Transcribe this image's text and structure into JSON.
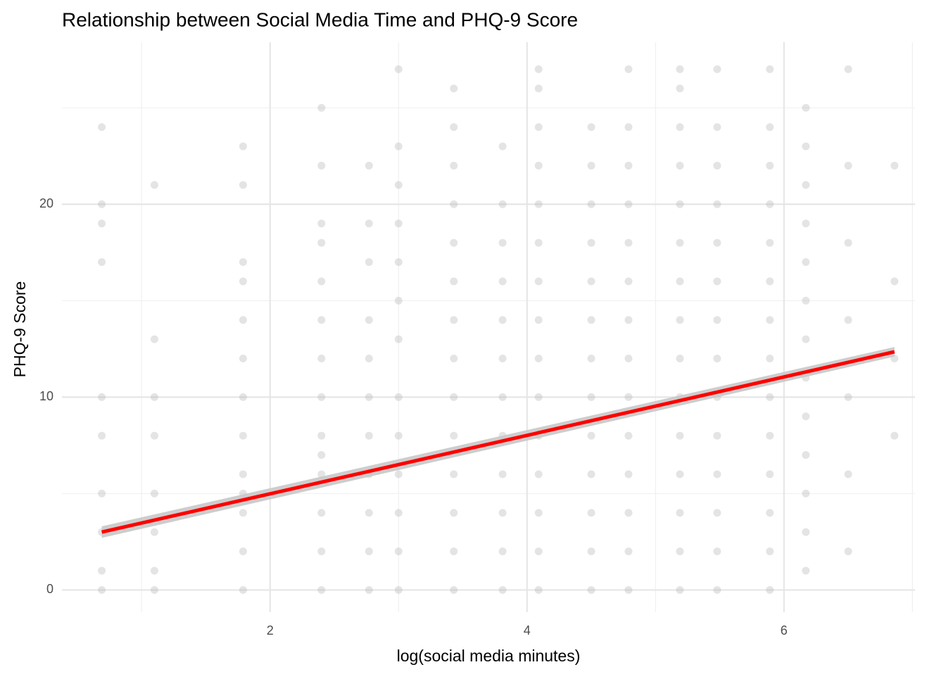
{
  "chart_data": {
    "type": "scatter",
    "title": "Relationship between Social Media Time and PHQ-9 Score",
    "x_label": "log(social media minutes)",
    "y_label": "PHQ-9 Score",
    "xlim": [
      0.38,
      7.02
    ],
    "ylim": [
      -1.15,
      28.4
    ],
    "xticks": [
      2,
      4,
      6
    ],
    "yticks": [
      0,
      10,
      20
    ],
    "xminor": [
      1,
      3,
      5,
      7
    ],
    "yminor": [
      5,
      15,
      25
    ],
    "grid": true,
    "color": "#b3b3b3",
    "x": [
      0.69,
      0.69,
      0.69,
      0.69,
      0.69,
      0.69,
      0.69,
      0.69,
      0.69,
      0.69,
      1.1,
      1.1,
      1.1,
      1.1,
      1.1,
      1.1,
      1.1,
      1.1,
      1.79,
      1.79,
      1.79,
      1.79,
      1.79,
      1.79,
      1.79,
      1.79,
      1.79,
      1.79,
      1.79,
      1.79,
      1.79,
      2.4,
      2.4,
      2.4,
      2.4,
      2.4,
      2.4,
      2.4,
      2.4,
      2.4,
      2.4,
      2.4,
      2.4,
      2.4,
      2.4,
      2.77,
      2.77,
      2.77,
      2.77,
      2.77,
      2.77,
      2.77,
      2.77,
      2.77,
      2.77,
      2.77,
      3.0,
      3.0,
      3.0,
      3.0,
      3.0,
      3.0,
      3.0,
      3.0,
      3.0,
      3.0,
      3.0,
      3.0,
      3.0,
      3.43,
      3.43,
      3.43,
      3.43,
      3.43,
      3.43,
      3.43,
      3.43,
      3.43,
      3.43,
      3.43,
      3.43,
      3.43,
      3.43,
      3.81,
      3.81,
      3.81,
      3.81,
      3.81,
      3.81,
      3.81,
      3.81,
      3.81,
      3.81,
      3.81,
      3.81,
      4.09,
      4.09,
      4.09,
      4.09,
      4.09,
      4.09,
      4.09,
      4.09,
      4.09,
      4.09,
      4.09,
      4.09,
      4.09,
      4.09,
      4.09,
      4.5,
      4.5,
      4.5,
      4.5,
      4.5,
      4.5,
      4.5,
      4.5,
      4.5,
      4.5,
      4.5,
      4.5,
      4.5,
      4.79,
      4.79,
      4.79,
      4.79,
      4.79,
      4.79,
      4.79,
      4.79,
      4.79,
      4.79,
      4.79,
      4.79,
      4.79,
      4.79,
      5.19,
      5.19,
      5.19,
      5.19,
      5.19,
      5.19,
      5.19,
      5.19,
      5.19,
      5.19,
      5.19,
      5.19,
      5.19,
      5.19,
      5.19,
      5.48,
      5.48,
      5.48,
      5.48,
      5.48,
      5.48,
      5.48,
      5.48,
      5.48,
      5.48,
      5.48,
      5.48,
      5.48,
      5.48,
      5.89,
      5.89,
      5.89,
      5.89,
      5.89,
      5.89,
      5.89,
      5.89,
      5.89,
      5.89,
      5.89,
      5.89,
      5.89,
      5.89,
      6.17,
      6.17,
      6.17,
      6.17,
      6.17,
      6.17,
      6.17,
      6.17,
      6.17,
      6.17,
      6.17,
      6.17,
      6.17,
      6.5,
      6.5,
      6.5,
      6.5,
      6.5,
      6.5,
      6.5,
      6.86,
      6.86,
      6.86,
      6.86
    ],
    "y": [
      0,
      1,
      3,
      5,
      8,
      10,
      17,
      19,
      20,
      24,
      0,
      1,
      3,
      5,
      8,
      10,
      13,
      21,
      0,
      2,
      4,
      5,
      6,
      8,
      10,
      12,
      14,
      16,
      17,
      21,
      23,
      0,
      2,
      4,
      6,
      7,
      8,
      10,
      12,
      14,
      16,
      18,
      19,
      22,
      25,
      0,
      2,
      4,
      6,
      8,
      10,
      12,
      14,
      17,
      19,
      22,
      0,
      2,
      4,
      6,
      8,
      10,
      13,
      15,
      17,
      19,
      21,
      23,
      27,
      0,
      2,
      4,
      6,
      8,
      10,
      12,
      14,
      16,
      18,
      20,
      22,
      24,
      26,
      0,
      2,
      4,
      6,
      8,
      10,
      12,
      14,
      16,
      18,
      20,
      23,
      0,
      2,
      4,
      6,
      8,
      10,
      12,
      14,
      16,
      18,
      20,
      22,
      24,
      26,
      27,
      0,
      2,
      4,
      6,
      8,
      10,
      12,
      14,
      16,
      18,
      20,
      22,
      24,
      0,
      2,
      4,
      6,
      8,
      10,
      12,
      14,
      16,
      18,
      20,
      22,
      24,
      27,
      0,
      2,
      4,
      6,
      8,
      10,
      12,
      14,
      16,
      18,
      20,
      22,
      24,
      26,
      27,
      0,
      2,
      4,
      6,
      8,
      10,
      12,
      14,
      16,
      18,
      20,
      22,
      24,
      27,
      0,
      2,
      4,
      6,
      8,
      10,
      12,
      14,
      16,
      18,
      20,
      22,
      24,
      27,
      1,
      3,
      5,
      7,
      9,
      11,
      13,
      15,
      17,
      19,
      21,
      23,
      25,
      2,
      6,
      10,
      14,
      18,
      22,
      27,
      8,
      12,
      16,
      22
    ],
    "fit": {
      "color": "#ff0000",
      "band_color": "#c8c8c8",
      "x": [
        0.69,
        6.86
      ],
      "y": [
        3.0,
        12.35
      ],
      "lower": [
        2.7,
        12.1
      ],
      "upper": [
        3.3,
        12.6
      ]
    }
  }
}
